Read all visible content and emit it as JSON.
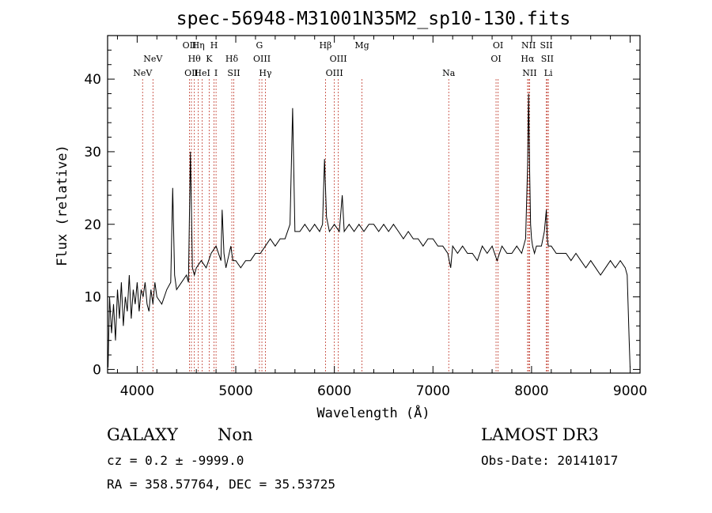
{
  "chart_data": {
    "type": "line",
    "title": "spec-56948-M31001N35M2_sp10-130.fits",
    "xlabel": "Wavelength (Å)",
    "ylabel": "Flux (relative)",
    "xlim": [
      3700,
      9100
    ],
    "ylim": [
      -0.5,
      46
    ],
    "xticks": [
      4000,
      5000,
      6000,
      7000,
      8000,
      9000
    ],
    "yticks": [
      0,
      10,
      20,
      30,
      40
    ],
    "grid": false,
    "series": [
      {
        "name": "spectrum",
        "x": [
          3705,
          3720,
          3740,
          3760,
          3780,
          3800,
          3820,
          3840,
          3860,
          3880,
          3900,
          3920,
          3940,
          3960,
          3980,
          4000,
          4020,
          4040,
          4060,
          4080,
          4100,
          4120,
          4140,
          4160,
          4180,
          4200,
          4250,
          4300,
          4340,
          4360,
          4380,
          4400,
          4450,
          4500,
          4520,
          4540,
          4560,
          4580,
          4600,
          4650,
          4700,
          4750,
          4800,
          4850,
          4862,
          4880,
          4900,
          4950,
          4970,
          5000,
          5050,
          5100,
          5150,
          5200,
          5250,
          5300,
          5350,
          5400,
          5450,
          5500,
          5550,
          5577,
          5600,
          5650,
          5700,
          5750,
          5800,
          5850,
          5880,
          5900,
          5920,
          5950,
          6000,
          6050,
          6080,
          6100,
          6150,
          6200,
          6250,
          6300,
          6350,
          6400,
          6450,
          6500,
          6550,
          6600,
          6650,
          6700,
          6750,
          6800,
          6850,
          6900,
          6950,
          7000,
          7050,
          7100,
          7150,
          7180,
          7200,
          7250,
          7300,
          7350,
          7400,
          7450,
          7500,
          7550,
          7600,
          7650,
          7700,
          7750,
          7800,
          7850,
          7900,
          7940,
          7960,
          7970,
          7980,
          7990,
          8000,
          8010,
          8030,
          8050,
          8100,
          8130,
          8150,
          8160,
          8170,
          8200,
          8250,
          8300,
          8350,
          8400,
          8450,
          8500,
          8550,
          8600,
          8650,
          8700,
          8750,
          8800,
          8850,
          8900,
          8950,
          8970,
          8990,
          9000
        ],
        "values": [
          0.3,
          10,
          5,
          9,
          4,
          11,
          7,
          12,
          6,
          10,
          8,
          13,
          7,
          11,
          9,
          12,
          8,
          11,
          10,
          12,
          9,
          8,
          11,
          9,
          12,
          10,
          9,
          11,
          12,
          25,
          13,
          11,
          12,
          13,
          12,
          30,
          14,
          13,
          14,
          15,
          14,
          16,
          17,
          15,
          22,
          16,
          14,
          17,
          15,
          15,
          14,
          15,
          15,
          16,
          16,
          17,
          18,
          17,
          18,
          18,
          20,
          36,
          19,
          19,
          20,
          19,
          20,
          19,
          20,
          29,
          21,
          19,
          20,
          19,
          24,
          19,
          20,
          19,
          20,
          19,
          20,
          20,
          19,
          20,
          19,
          20,
          19,
          18,
          19,
          18,
          18,
          17,
          18,
          18,
          17,
          17,
          16,
          14,
          17,
          16,
          17,
          16,
          16,
          15,
          17,
          16,
          17,
          15,
          17,
          16,
          16,
          17,
          16,
          18,
          28,
          38,
          28,
          20,
          18,
          17,
          16,
          17,
          17,
          19,
          22,
          18,
          17,
          17,
          16,
          16,
          16,
          15,
          16,
          15,
          14,
          15,
          14,
          13,
          14,
          15,
          14,
          15,
          14,
          13,
          4,
          0.2
        ]
      }
    ],
    "lines": [
      {
        "name": "NeV",
        "x": 4055,
        "row": 2
      },
      {
        "name": "NeV",
        "x": 4160,
        "row": 1
      },
      {
        "name": "OII",
        "x": 4530,
        "row": 0
      },
      {
        "name": "OII",
        "x": 4550,
        "row": 2
      },
      {
        "name": "Hθ",
        "x": 4580,
        "row": 1
      },
      {
        "name": "Hη",
        "x": 4620,
        "row": 0
      },
      {
        "name": "HeI",
        "x": 4660,
        "row": 2
      },
      {
        "name": "K",
        "x": 4730,
        "row": 1
      },
      {
        "name": "H",
        "x": 4780,
        "row": 0
      },
      {
        "name": "I",
        "x": 4800,
        "row": 2
      },
      {
        "name": "Hδ",
        "x": 4960,
        "row": 1
      },
      {
        "name": "SII",
        "x": 4980,
        "row": 2
      },
      {
        "name": "G",
        "x": 5240,
        "row": 0
      },
      {
        "name": "OIII",
        "x": 5265,
        "row": 1
      },
      {
        "name": "Hγ",
        "x": 5300,
        "row": 2
      },
      {
        "name": "Hβ",
        "x": 5910,
        "row": 0
      },
      {
        "name": "OIII",
        "x": 6040,
        "row": 1
      },
      {
        "name": "OIII",
        "x": 6000,
        "row": 2
      },
      {
        "name": "Mg",
        "x": 6280,
        "row": 0
      },
      {
        "name": "Na",
        "x": 7160,
        "row": 2
      },
      {
        "name": "OI",
        "x": 7660,
        "row": 0
      },
      {
        "name": "OI",
        "x": 7640,
        "row": 1
      },
      {
        "name": "NII",
        "x": 7970,
        "row": 0
      },
      {
        "name": "Hα",
        "x": 7960,
        "row": 1
      },
      {
        "name": "NII",
        "x": 7980,
        "row": 2
      },
      {
        "name": "SII",
        "x": 8150,
        "row": 0
      },
      {
        "name": "SII",
        "x": 8160,
        "row": 1
      },
      {
        "name": "Li",
        "x": 8170,
        "row": 2
      }
    ]
  },
  "footer": {
    "object_class": "GALAXY",
    "subclass": "Non",
    "redshift_line": "cz = 0.2 ± -9999.0",
    "coords_line": "RA = 358.57764, DEC =  35.53725",
    "survey": "LAMOST DR3",
    "obs_date": "Obs-Date: 20141017"
  },
  "colors": {
    "spectrum": "#000000",
    "line_markers": "#c0392b",
    "axes": "#000000"
  }
}
